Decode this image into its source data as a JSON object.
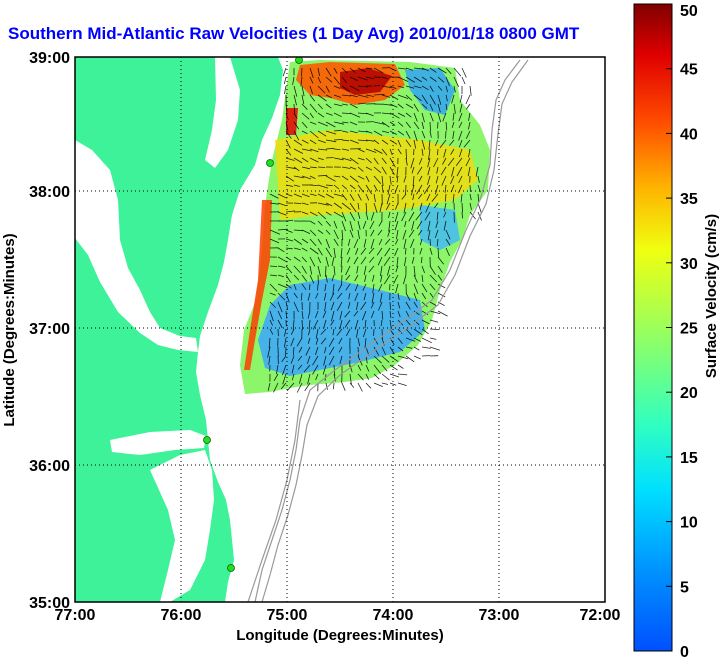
{
  "title": "Southern Mid-Atlantic Raw Velocities (1 Day Avg) 2010/01/18 0800 GMT",
  "x_axis": {
    "label": "Longitude (Degrees:Minutes)",
    "ticks": [
      "77:00",
      "76:00",
      "75:00",
      "74:00",
      "73:00",
      "72:00"
    ]
  },
  "y_axis": {
    "label": "Latitude (Degrees:Minutes)",
    "ticks": [
      "39:00",
      "38:00",
      "37:00",
      "36:00",
      "35:00"
    ]
  },
  "colorbar": {
    "label": "Surface Velocity (cm/s)",
    "ticks": [
      "0",
      "5",
      "10",
      "15",
      "20",
      "25",
      "30",
      "35",
      "40",
      "45",
      "50"
    ],
    "min": 0,
    "max": 50
  },
  "colors": {
    "land": "#3ef29a",
    "water": "#ffffff",
    "title": "#0000ff",
    "grid": "#000000",
    "bathymetry": "#999999",
    "station": "#22dd22"
  },
  "map": {
    "lon_range": [
      -77,
      -72
    ],
    "lat_range": [
      35,
      39
    ],
    "grid": true,
    "colormap": "jet"
  }
}
